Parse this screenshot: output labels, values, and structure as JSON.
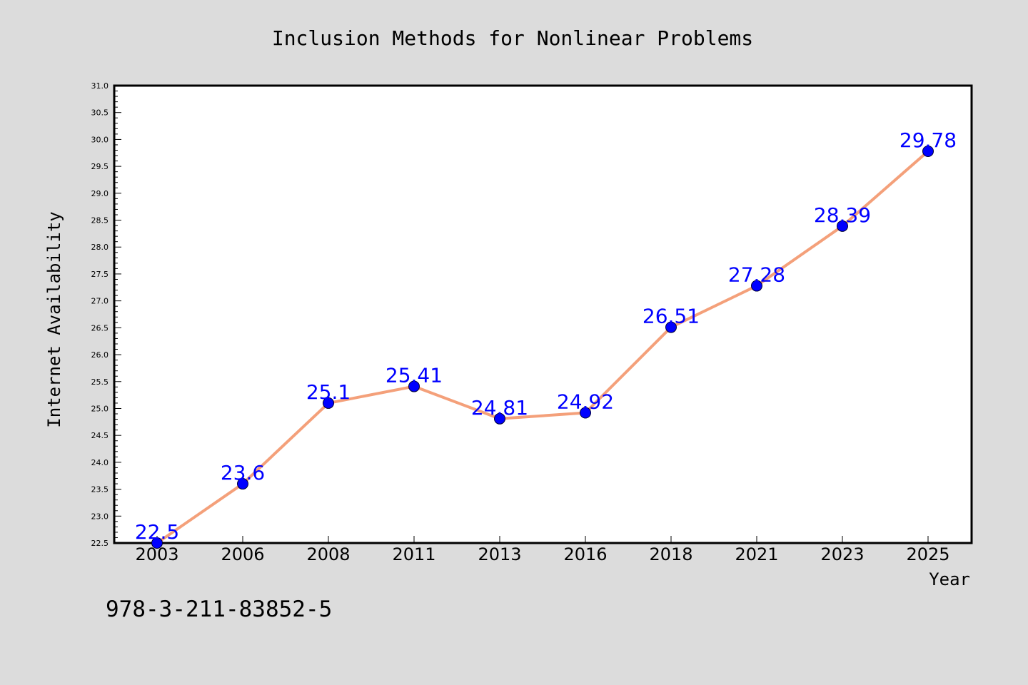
{
  "footer_text": "978-3-211-83852-5",
  "colors": {
    "background": "#dcdcdc",
    "plot_background": "#ffffff",
    "line": "#f4a07a",
    "marker": "#0000ff",
    "data_label": "#0000ff",
    "text": "#000000"
  },
  "chart_data": {
    "type": "line",
    "title": "Inclusion Methods for Nonlinear Problems",
    "xlabel": "Year",
    "ylabel": "Internet Availability",
    "categories": [
      "2003",
      "2006",
      "2008",
      "2011",
      "2013",
      "2016",
      "2018",
      "2021",
      "2023",
      "2025"
    ],
    "values": [
      22.5,
      23.6,
      25.1,
      25.41,
      24.81,
      24.92,
      26.51,
      27.28,
      28.39,
      29.78
    ],
    "data_labels": [
      "22.5",
      "23.6",
      "25.1",
      "25.41",
      "24.81",
      "24.92",
      "26.51",
      "27.28",
      "28.39",
      "29.78"
    ],
    "ylim": [
      22.5,
      31.0
    ],
    "y_ticks": [
      "22.5",
      "23.0",
      "23.5",
      "24.0",
      "24.5",
      "25.0",
      "25.5",
      "26.0",
      "26.5",
      "27.0",
      "27.5",
      "28.0",
      "28.5",
      "29.0",
      "29.5",
      "30.0",
      "30.5",
      "31.0"
    ],
    "y_major_step": 0.5,
    "y_minor_step": 0.1,
    "grid": false,
    "legend": "none",
    "markers": true
  }
}
